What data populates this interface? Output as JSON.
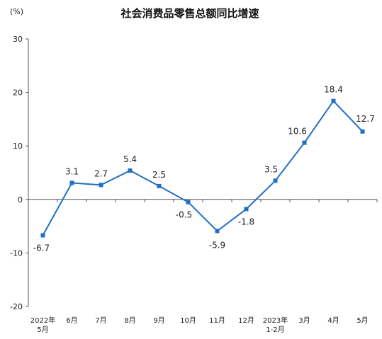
{
  "chart_data": {
    "type": "line",
    "title": "社会消费品零售总额同比增速",
    "unit_label": "(%)",
    "ylim": [
      -20,
      30
    ],
    "yticks": [
      "30",
      "20",
      "10",
      "0",
      "-10",
      "-20"
    ],
    "categories": [
      [
        "2022年",
        "5月"
      ],
      [
        "6月"
      ],
      [
        "7月"
      ],
      [
        "8月"
      ],
      [
        "9月"
      ],
      [
        "10月"
      ],
      [
        "11月"
      ],
      [
        "12月"
      ],
      [
        "2023年",
        "1-2月"
      ],
      [
        "3月"
      ],
      [
        "4月"
      ],
      [
        "5月"
      ]
    ],
    "series": [
      {
        "values": [
          -6.7,
          3.1,
          2.7,
          5.4,
          2.5,
          -0.5,
          -5.9,
          -1.8,
          3.5,
          10.6,
          18.4,
          12.7
        ],
        "labels": [
          "-6.7",
          "3.1",
          "2.7",
          "5.4",
          "2.5",
          "-0.5",
          "-5.9",
          "-1.8",
          "3.5",
          "10.6",
          "18.4",
          "12.7"
        ]
      }
    ],
    "line_color": "#1f6fc6",
    "marker_color": "#1f6fc6",
    "axis_color": "#555555",
    "grid": false
  }
}
